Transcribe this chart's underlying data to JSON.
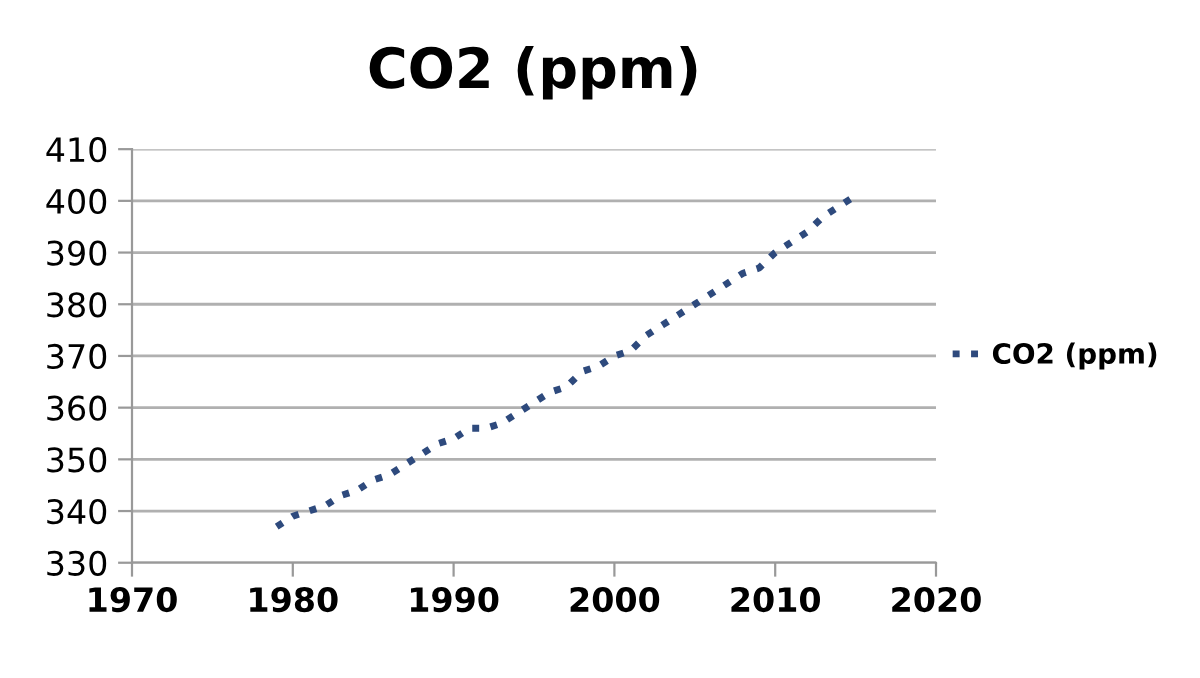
{
  "chart_data": {
    "type": "line",
    "title": "CO2 (ppm)",
    "x": [
      1979,
      1980,
      1981,
      1982,
      1983,
      1984,
      1985,
      1986,
      1987,
      1988,
      1989,
      1990,
      1991,
      1992,
      1993,
      1994,
      1995,
      1996,
      1997,
      1998,
      1999,
      2000,
      2001,
      2002,
      2003,
      2004,
      2005,
      2006,
      2007,
      2008,
      2009,
      2010,
      2011,
      2012,
      2013,
      2014,
      2015
    ],
    "series": [
      {
        "name": "CO2 (ppm)",
        "color": "#2e4a7d",
        "values": [
          337,
          339,
          340,
          341,
          343,
          344,
          346,
          347,
          349,
          351,
          353,
          354,
          356,
          356,
          357,
          359,
          361,
          363,
          364,
          367,
          368,
          370,
          371,
          374,
          376,
          378,
          380,
          382,
          384,
          386,
          387,
          390,
          392,
          394,
          397,
          399,
          401
        ]
      }
    ],
    "xlim": [
      1970,
      2020
    ],
    "xticks": [
      1970,
      1980,
      1990,
      2000,
      2010,
      2020
    ],
    "ylim": [
      330,
      410
    ],
    "yticks": [
      330,
      340,
      350,
      360,
      370,
      380,
      390,
      400,
      410
    ],
    "grid": "y",
    "legend": "right",
    "line_style": "dotted",
    "marker": "none"
  }
}
